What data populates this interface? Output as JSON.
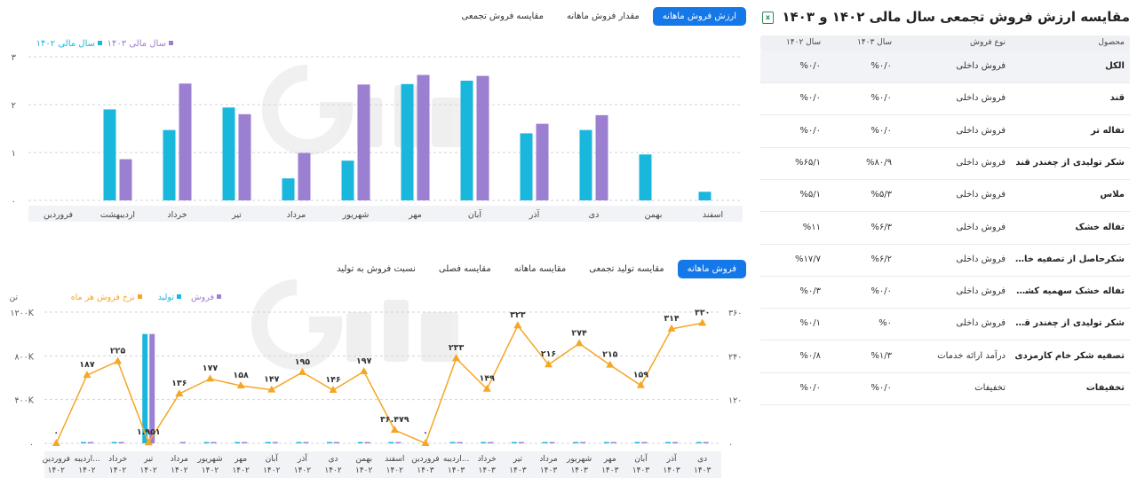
{
  "table": {
    "title": "مقایسه ارزش فروش تجمعی سال مالی ۱۴۰۲ و ۱۴۰۳",
    "excel_icon": "excel-icon",
    "headers": {
      "product": "محصول",
      "type": "نوع فروش",
      "y1403": "سال ۱۴۰۳",
      "y1402": "سال ۱۴۰۲"
    },
    "rows": [
      {
        "product": "الکل",
        "type": "فروش داخلی",
        "y1403": "%۰/۰",
        "y1402": "%۰/۰"
      },
      {
        "product": "قند",
        "type": "فروش داخلی",
        "y1403": "%۰/۰",
        "y1402": "%۰/۰"
      },
      {
        "product": "تفاله تر",
        "type": "فروش داخلی",
        "y1403": "%۰/۰",
        "y1402": "%۰/۰"
      },
      {
        "product": "شکر تولیدی از چغندر قند",
        "type": "فروش داخلی",
        "y1403": "%۸۰/۹",
        "y1402": "%۶۵/۱"
      },
      {
        "product": "ملاس",
        "type": "فروش داخلی",
        "y1403": "%۵/۳",
        "y1402": "%۵/۱"
      },
      {
        "product": "تفاله خشک",
        "type": "فروش داخلی",
        "y1403": "%۶/۳",
        "y1402": "%۱۱"
      },
      {
        "product": "شکرحاصل از تصفیه خام خریداری",
        "type": "فروش داخلی",
        "y1403": "%۶/۲",
        "y1402": "%۱۷/۷"
      },
      {
        "product": "تفاله خشک سهمیه کشاورزان",
        "type": "فروش داخلی",
        "y1403": "%۰/۰",
        "y1402": "%۰/۳"
      },
      {
        "product": "شکر تولیدی از چغندر قند(سهمیه ...",
        "type": "فروش داخلی",
        "y1403": "%۰",
        "y1402": "%۰/۱"
      },
      {
        "product": "تصفیه شکر خام کارمزدی",
        "type": "درآمد ارائه خدمات",
        "y1403": "%۱/۳",
        "y1402": "%۰/۸"
      },
      {
        "product": "تخفیفات",
        "type": "تخفیفات",
        "y1403": "%۰/۰",
        "y1402": "%۰/۰"
      }
    ]
  },
  "top_tabs": [
    {
      "label": "ارزش فروش ماهانه",
      "active": true
    },
    {
      "label": "مقدار فروش ماهانه",
      "active": false
    },
    {
      "label": "مقایسه فروش تجمعی",
      "active": false
    }
  ],
  "bottom_tabs": [
    {
      "label": "فروش ماهانه",
      "active": true
    },
    {
      "label": "مقایسه تولید تجمعی",
      "active": false
    },
    {
      "label": "مقایسه ماهانه",
      "active": false
    },
    {
      "label": "مقایسه فصلی",
      "active": false
    },
    {
      "label": "نسبت فروش به تولید",
      "active": false
    }
  ],
  "colors": {
    "cyan": "#1ab7dd",
    "purple": "#9b7fd1",
    "orange": "#f5a623",
    "accent": "#1478e8"
  },
  "chart_data": [
    {
      "type": "bar",
      "categories": [
        "فروردین",
        "اردیبهشت",
        "خرداد",
        "تیر",
        "مرداد",
        "شهریور",
        "مهر",
        "آبان",
        "آذر",
        "دی",
        "بهمن",
        "اسفند"
      ],
      "series": [
        {
          "name": "سال مالی ۱۴۰۲",
          "color": "#1ab7dd",
          "values": [
            0,
            1.9,
            1.47,
            1.94,
            0.46,
            0.83,
            2.43,
            2.5,
            1.4,
            1.47,
            0.96,
            0.18
          ]
        },
        {
          "name": "سال مالی ۱۴۰۳",
          "color": "#9b7fd1",
          "values": [
            0,
            0.86,
            2.44,
            1.8,
            0.99,
            2.42,
            2.62,
            2.6,
            1.6,
            1.78,
            0,
            0
          ]
        }
      ],
      "yticks": [
        "۰",
        "۱",
        "۲",
        "۳"
      ],
      "ylim": [
        0,
        3
      ],
      "legend": "top-left"
    },
    {
      "type": "line",
      "categories": [
        [
          "فروردین",
          "۱۴۰۲"
        ],
        [
          "اردیبه...",
          "۱۴۰۲"
        ],
        [
          "خرداد",
          "۱۴۰۲"
        ],
        [
          "تیر",
          "۱۴۰۲"
        ],
        [
          "مرداد",
          "۱۴۰۲"
        ],
        [
          "شهریور",
          "۱۴۰۲"
        ],
        [
          "مهر",
          "۱۴۰۲"
        ],
        [
          "آبان",
          "۱۴۰۲"
        ],
        [
          "آذر",
          "۱۴۰۲"
        ],
        [
          "دی",
          "۱۴۰۲"
        ],
        [
          "بهمن",
          "۱۴۰۲"
        ],
        [
          "اسفند",
          "۱۴۰۲"
        ],
        [
          "فروردین",
          "۱۴۰۳"
        ],
        [
          "اردیبه...",
          "۱۴۰۳"
        ],
        [
          "خرداد",
          "۱۴۰۳"
        ],
        [
          "تیر",
          "۱۴۰۳"
        ],
        [
          "مرداد",
          "۱۴۰۳"
        ],
        [
          "شهریور",
          "۱۴۰۳"
        ],
        [
          "مهر",
          "۱۴۰۳"
        ],
        [
          "آبان",
          "۱۴۰۳"
        ],
        [
          "آذر",
          "۱۴۰۳"
        ],
        [
          "دی",
          "۱۴۰۳"
        ]
      ],
      "legend": [
        {
          "name": "فروش",
          "color": "#9b7fd1"
        },
        {
          "name": "تولید",
          "color": "#1ab7dd"
        },
        {
          "name": "نرخ فروش هر ماه",
          "color": "#f5a623"
        }
      ],
      "left_unit": "تن",
      "left_ticks": [
        "۰",
        "۴۰۰K",
        "۸۰۰K",
        "۱۲۰۰K"
      ],
      "left_ylim": [
        0,
        1200000
      ],
      "right_ticks": [
        "۰",
        "۱۲۰",
        "۲۴۰",
        "۳۶۰"
      ],
      "right_ylim": [
        0,
        360
      ],
      "rate": [
        0,
        187,
        225,
        1.951,
        136,
        177,
        158,
        147,
        195,
        146,
        197,
        36.479,
        0,
        233,
        149,
        323,
        216,
        274,
        215,
        159,
        314,
        330
      ],
      "rate_labels": [
        "۰",
        "۱۸۷",
        "۲۲۵",
        "۱.۹۵۱",
        "۱۳۶",
        "۱۷۷",
        "۱۵۸",
        "۱۴۷",
        "۱۹۵",
        "۱۴۶",
        "۱۹۷",
        "۳۶.۴۷۹",
        "۰",
        "۲۳۳",
        "۱۴۹",
        "۳۲۳",
        "۲۱۶",
        "۲۷۴",
        "۲۱۵",
        "۱۵۹",
        "۳۱۴",
        "۳۳۰"
      ],
      "production": [
        0,
        2000,
        3000,
        1000000,
        0,
        3000,
        5000,
        4000,
        3000,
        3000,
        2000,
        2000,
        0,
        3000,
        4000,
        2000,
        2000,
        3000,
        4000,
        4000,
        2000,
        3000
      ],
      "sales": [
        0,
        2000,
        2000,
        1000000,
        2000,
        2000,
        4000,
        3000,
        2000,
        2000,
        1000,
        1000,
        0,
        2000,
        3000,
        2000,
        2000,
        2000,
        3000,
        4000,
        2000,
        2000
      ]
    }
  ]
}
